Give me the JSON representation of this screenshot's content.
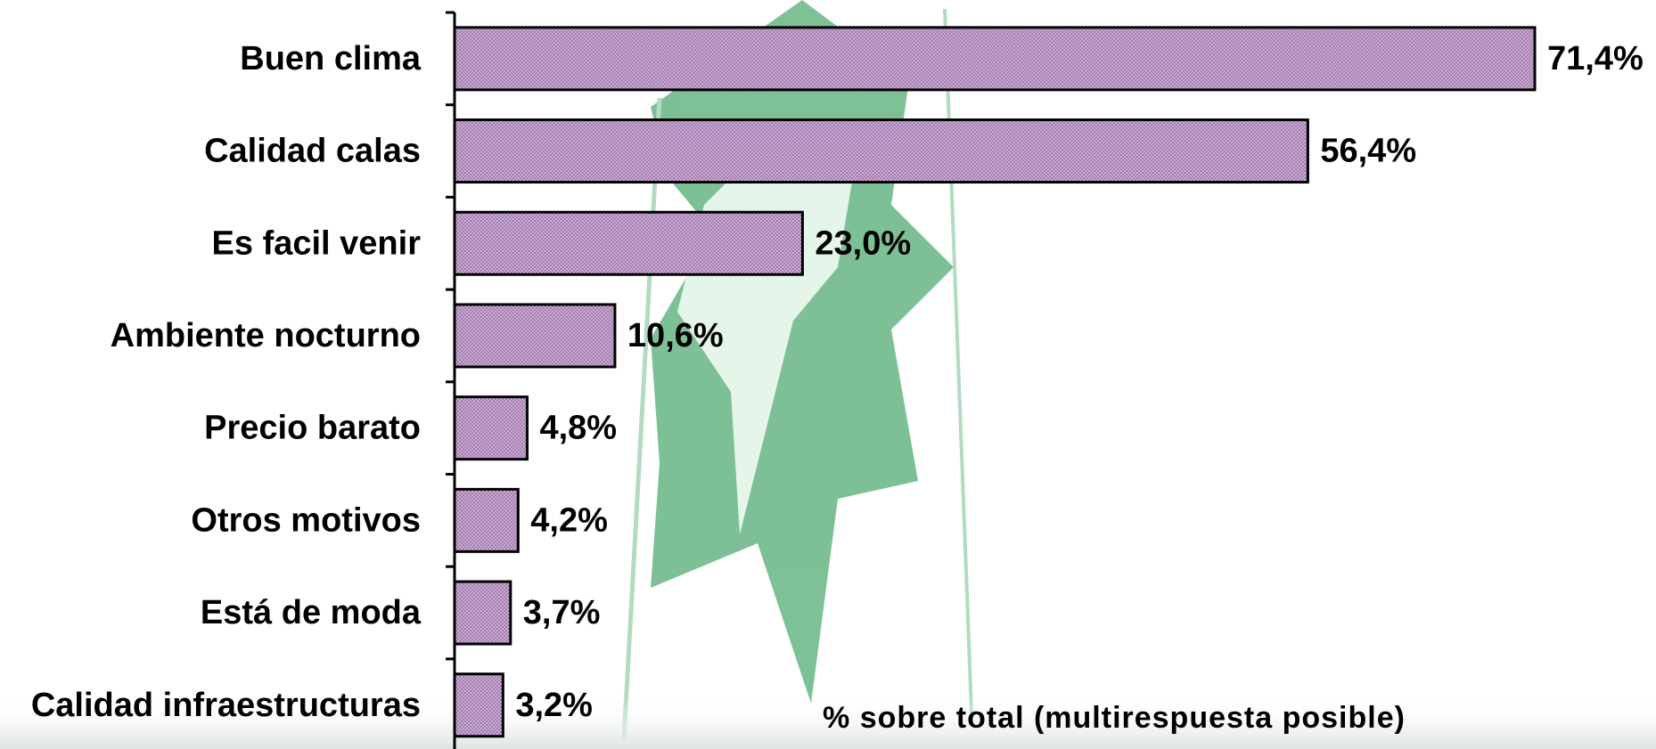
{
  "chart_data": {
    "type": "bar",
    "orientation": "horizontal",
    "categories": [
      "Buen clima",
      "Calidad calas",
      "Es facil venir",
      "Ambiente nocturno",
      "Precio barato",
      "Otros motivos",
      "Está de moda",
      "Calidad infraestructuras"
    ],
    "values": [
      71.4,
      56.4,
      23.0,
      10.6,
      4.8,
      4.2,
      3.7,
      3.2
    ],
    "value_labels": [
      "71,4%",
      "56,4%",
      "23,0%",
      "10,6%",
      "4,8%",
      "4,2%",
      "3,7%",
      "3,2%"
    ],
    "color": "#d8b4e2",
    "xlim": [
      0,
      79
    ],
    "annotation": "% sobre total (multirespuesta posible)"
  }
}
